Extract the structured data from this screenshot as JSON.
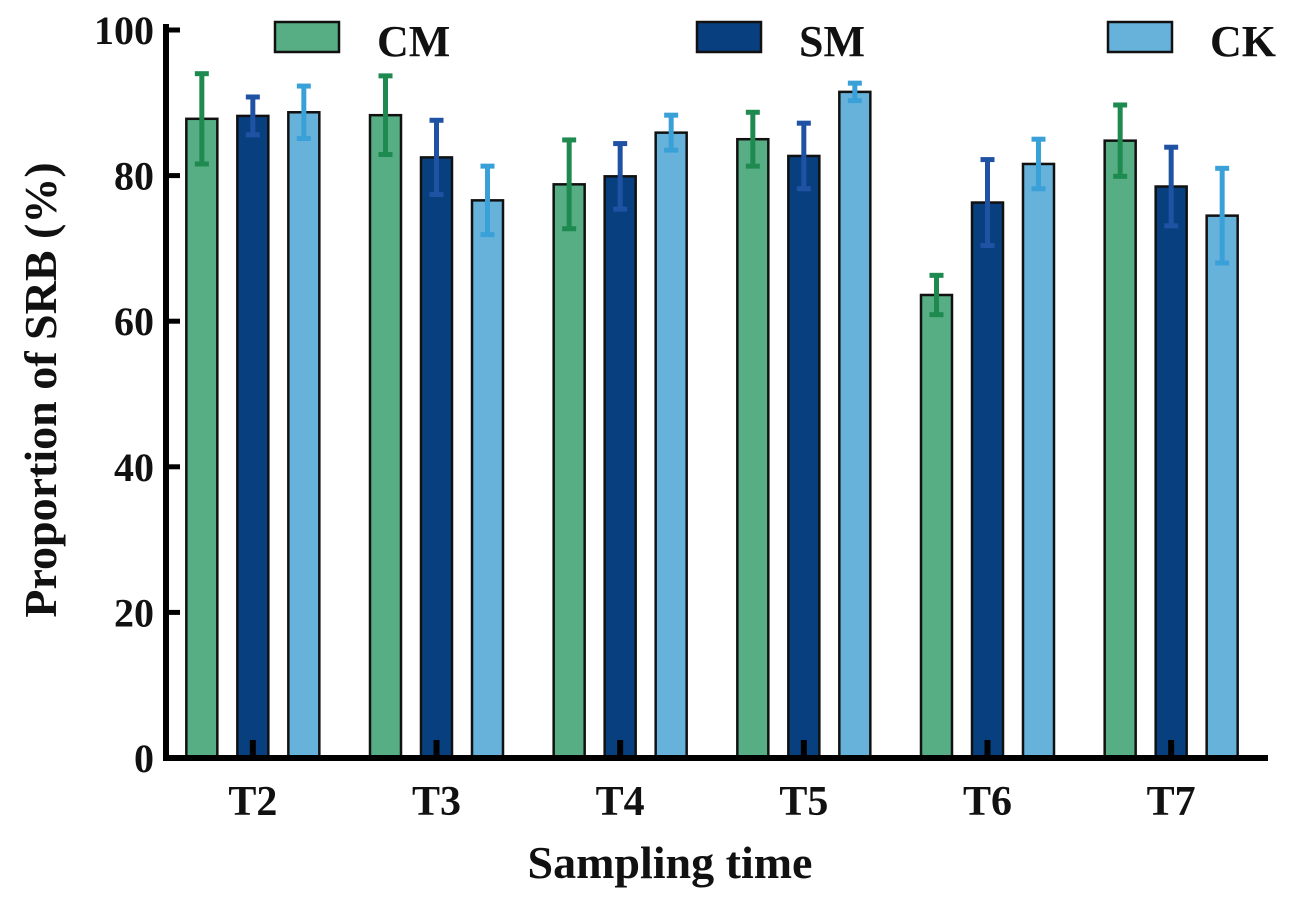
{
  "chart_data": {
    "type": "bar",
    "title": "",
    "xlabel": "Sampling time",
    "ylabel": "Proportion of SRB (%)",
    "ylim": [
      0,
      100
    ],
    "yticks": [
      "0",
      "20",
      "40",
      "60",
      "80",
      "100"
    ],
    "categories": [
      "T2",
      "T3",
      "T4",
      "T5",
      "T6",
      "T7"
    ],
    "legend_position": "top",
    "series": [
      {
        "name": "CM",
        "fill": "#57ae84",
        "error_color": "#1e8a50",
        "values": [
          87.8,
          88.3,
          78.8,
          85.0,
          63.6,
          84.8
        ],
        "errors": [
          6.2,
          5.4,
          6.1,
          3.7,
          2.7,
          4.9
        ]
      },
      {
        "name": "SM",
        "fill": "#08407f",
        "error_color": "#1f52a3",
        "values": [
          88.2,
          82.5,
          79.9,
          82.7,
          76.3,
          78.5
        ],
        "errors": [
          2.6,
          5.1,
          4.5,
          4.5,
          5.9,
          5.4
        ]
      },
      {
        "name": "CK",
        "fill": "#66b2db",
        "error_color": "#3aa0d8",
        "values": [
          88.7,
          76.6,
          85.9,
          91.5,
          81.6,
          74.5
        ],
        "errors": [
          3.6,
          4.7,
          2.4,
          1.2,
          3.4,
          6.5
        ]
      }
    ]
  }
}
